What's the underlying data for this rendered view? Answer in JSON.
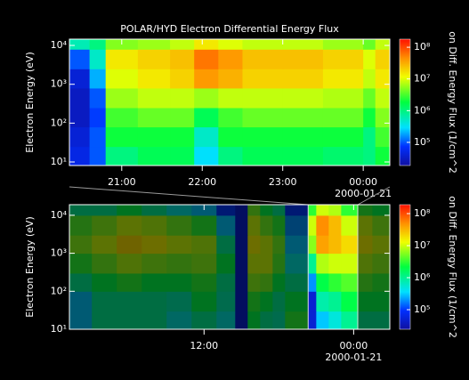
{
  "chart_data": [
    {
      "type": "heatmap",
      "title": "POLAR/HYD  Electron Differential Energy Flux",
      "ylabel": "Electron Energy (eV)",
      "colorbar_label": "on Diff. Energy Flux (1/cm^2",
      "x_date_label": "2000-01-21",
      "ylog": true,
      "zlog": true,
      "xlim": [
        20.35,
        24.33
      ],
      "xticks": [
        {
          "value": 21,
          "label": "21:00"
        },
        {
          "value": 22,
          "label": "22:00"
        },
        {
          "value": 23,
          "label": "23:00"
        },
        {
          "value": 24,
          "label": "00:00"
        }
      ],
      "ylim": [
        8.1,
        14500
      ],
      "yticks": [
        {
          "value": 10,
          "label": "10¹"
        },
        {
          "value": 100,
          "label": "10²"
        },
        {
          "value": 1000,
          "label": "10³"
        },
        {
          "value": 10000,
          "label": "10⁴"
        }
      ],
      "zlim": [
        18600,
        180000000
      ],
      "zticks": [
        {
          "value": 100000,
          "label": "10⁵"
        },
        {
          "value": 1000000,
          "label": "10⁶"
        },
        {
          "value": 10000000,
          "label": "10⁷"
        },
        {
          "value": 100000000,
          "label": "10⁸"
        }
      ],
      "x_edges": [
        20.35,
        20.6,
        20.8,
        21.2,
        21.6,
        21.9,
        22.2,
        22.5,
        23.0,
        23.5,
        24.0,
        24.15,
        24.33
      ],
      "y_edges": [
        8.1,
        25,
        80,
        250,
        800,
        2500,
        8000,
        14500
      ],
      "z": [
        [
          50000.0,
          100000.0,
          1000000.0,
          1500000.0,
          1500000.0,
          300000.0,
          1000000.0,
          1500000.0,
          1500000.0,
          1200000.0,
          1000000.0,
          2000000.0
        ],
        [
          40000.0,
          100000.0,
          2000000.0,
          2000000.0,
          2000000.0,
          500000.0,
          2000000.0,
          2000000.0,
          2000000.0,
          2000000.0,
          1000000.0,
          3000000.0
        ],
        [
          30000.0,
          80000.0,
          3000000.0,
          4000000.0,
          4000000.0,
          1500000.0,
          3000000.0,
          4000000.0,
          4000000.0,
          4000000.0,
          2000000.0,
          5000000.0
        ],
        [
          30000.0,
          100000.0,
          6000000.0,
          8000000.0,
          8000000.0,
          6000000.0,
          8000000.0,
          8000000.0,
          8000000.0,
          7000000.0,
          4000000.0,
          8000000.0
        ],
        [
          40000.0,
          200000.0,
          10000000.0,
          15000000.0,
          20000000.0,
          40000000.0,
          30000000.0,
          20000000.0,
          20000000.0,
          15000000.0,
          8000000.0,
          15000000.0
        ],
        [
          100000.0,
          500000.0,
          15000000.0,
          20000000.0,
          25000000.0,
          60000000.0,
          40000000.0,
          25000000.0,
          25000000.0,
          20000000.0,
          10000000.0,
          20000000.0
        ],
        [
          600000.0,
          1000000.0,
          5000000.0,
          6000000.0,
          8000000.0,
          15000000.0,
          10000000.0,
          8000000.0,
          8000000.0,
          6000000.0,
          4000000.0,
          8000000.0
        ]
      ]
    },
    {
      "type": "heatmap",
      "ylabel": "Electron Energy (eV)",
      "colorbar_label": "on Diff. Energy Flux (1/cm^2",
      "x_date_label": "2000-01-21",
      "ylog": true,
      "zlog": true,
      "xlim": [
        1.2,
        26.9
      ],
      "xticks": [
        {
          "value": 12,
          "label": "12:00"
        },
        {
          "value": 24,
          "label": "00:00"
        }
      ],
      "ylim": [
        10,
        19000
      ],
      "yticks": [
        {
          "value": 10,
          "label": "10¹"
        },
        {
          "value": 100,
          "label": "10²"
        },
        {
          "value": 1000,
          "label": "10³"
        },
        {
          "value": 10000,
          "label": "10⁴"
        }
      ],
      "zlim": [
        24500,
        190000000
      ],
      "zticks": [
        {
          "value": 100000,
          "label": "10⁵"
        },
        {
          "value": 1000000,
          "label": "10⁶"
        },
        {
          "value": 10000000,
          "label": "10⁷"
        },
        {
          "value": 100000000,
          "label": "10⁸"
        }
      ],
      "x_edges": [
        1.2,
        3,
        5,
        7,
        9,
        11,
        13,
        14.5,
        15.5,
        16.5,
        17.5,
        18.5,
        20.35,
        21,
        22,
        23,
        24.33,
        25.5,
        26.9
      ],
      "y_edges": [
        10,
        30,
        100,
        300,
        1000,
        3000,
        10000,
        19000
      ],
      "z": [
        [
          300000.0,
          1000000.0,
          1000000.0,
          1000000.0,
          500000.0,
          1000000.0,
          500000.0,
          50000.0,
          2000000.0,
          1000000.0,
          800000.0,
          3000000.0,
          50000.0,
          300000.0,
          500000.0,
          1000000.0,
          1000000.0,
          1000000.0
        ],
        [
          300000.0,
          1000000.0,
          1000000.0,
          1000000.0,
          800000.0,
          2000000.0,
          800000.0,
          50000.0,
          3000000.0,
          2000000.0,
          1000000.0,
          2000000.0,
          50000.0,
          800000.0,
          1000000.0,
          2000000.0,
          2000000.0,
          2000000.0
        ],
        [
          1000000.0,
          2000000.0,
          3000000.0,
          2000000.0,
          2000000.0,
          3000000.0,
          1000000.0,
          50000.0,
          6000000.0,
          5000000.0,
          2000000.0,
          1000000.0,
          200000.0,
          2000000.0,
          3000000.0,
          4000000.0,
          4000000.0,
          3000000.0
        ],
        [
          3000000.0,
          5000000.0,
          8000000.0,
          6000000.0,
          5000000.0,
          6000000.0,
          2000000.0,
          50000.0,
          10000000.0,
          10000000.0,
          4000000.0,
          500000.0,
          1000000.0,
          8000000.0,
          10000000.0,
          10000000.0,
          8000000.0,
          6000000.0
        ],
        [
          6000000.0,
          10000000.0,
          20000000.0,
          15000000.0,
          10000000.0,
          8000000.0,
          1000000.0,
          50000.0,
          15000000.0,
          10000000.0,
          5000000.0,
          300000.0,
          6000000.0,
          40000000.0,
          30000000.0,
          20000000.0,
          15000000.0,
          10000000.0
        ],
        [
          4000000.0,
          6000000.0,
          10000000.0,
          8000000.0,
          5000000.0,
          3000000.0,
          300000.0,
          50000.0,
          10000000.0,
          5000000.0,
          3000000.0,
          200000.0,
          10000000.0,
          50000000.0,
          30000000.0,
          10000000.0,
          10000000.0,
          6000000.0
        ],
        [
          1000000.0,
          1000000.0,
          2000000.0,
          1000000.0,
          500000.0,
          300000.0,
          100000.0,
          50000.0,
          5000000.0,
          2000000.0,
          1000000.0,
          100000.0,
          3000000.0,
          10000000.0,
          8000000.0,
          3000000.0,
          3000000.0,
          2000000.0
        ]
      ]
    }
  ]
}
